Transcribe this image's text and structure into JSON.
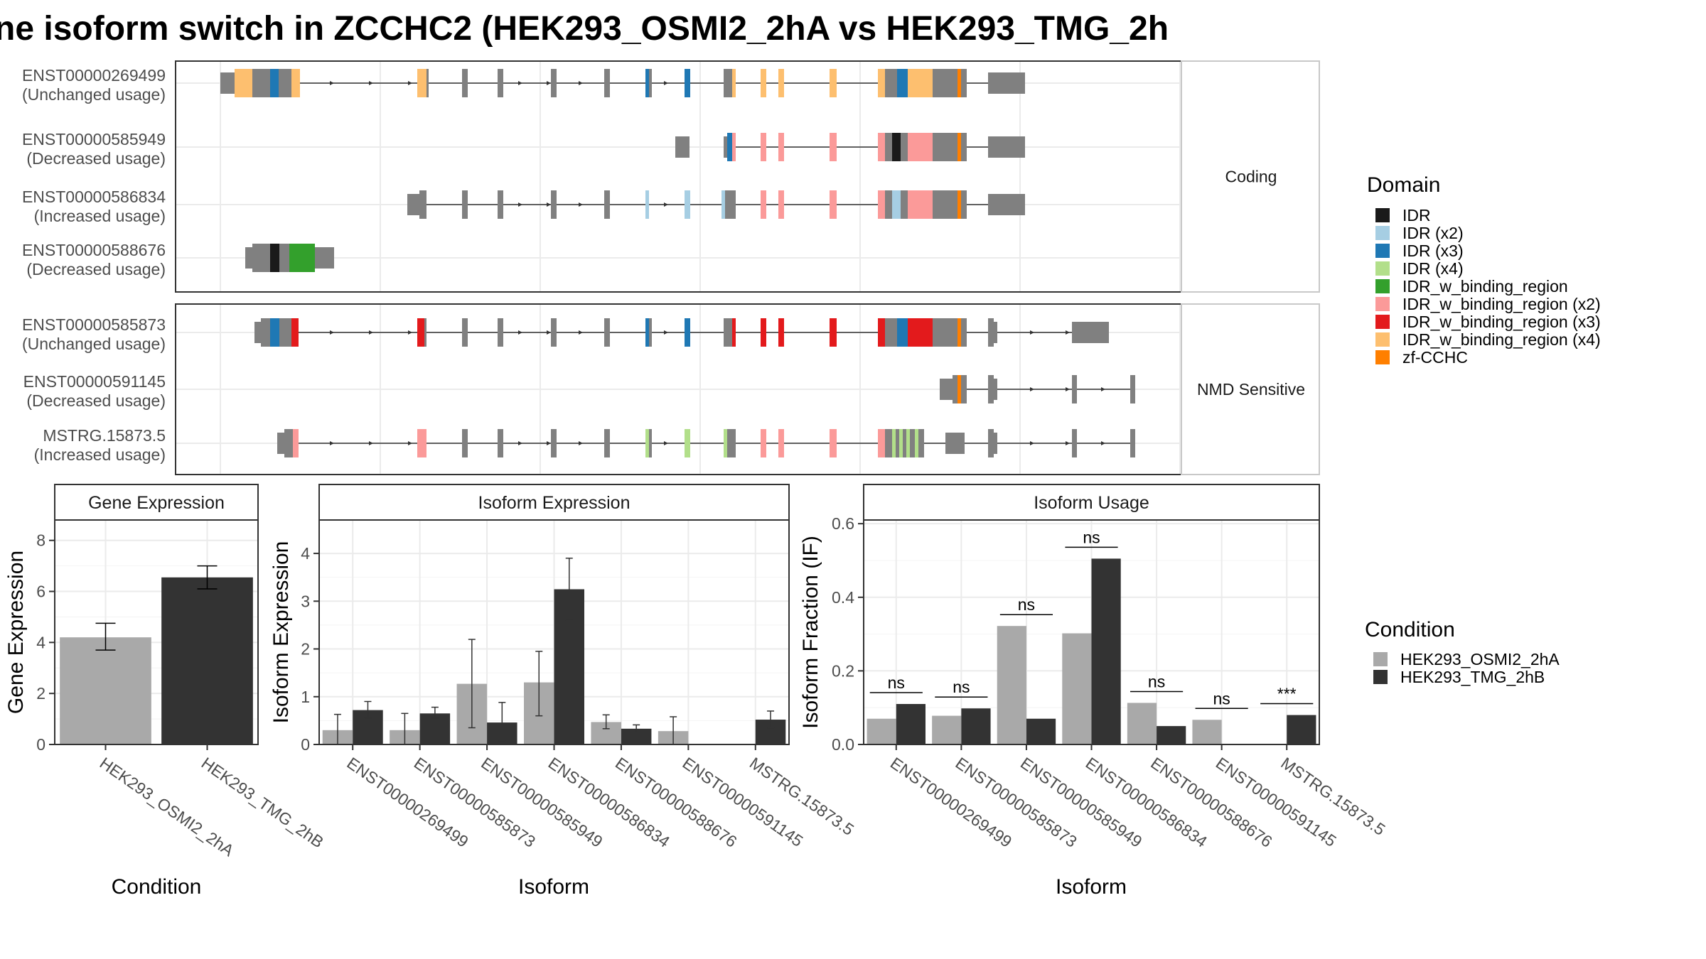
{
  "title": "ne isoform switch in ZCCHC2 (HEK293_OSMI2_2hA vs HEK293_TMG_2h",
  "legends": {
    "domain_title": "Domain",
    "domain_items": [
      {
        "label": "IDR",
        "color": "#1a1a1a"
      },
      {
        "label": "IDR (x2)",
        "color": "#a6cee3"
      },
      {
        "label": "IDR (x3)",
        "color": "#1f78b4"
      },
      {
        "label": "IDR (x4)",
        "color": "#b2df8a"
      },
      {
        "label": "IDR_w_binding_region",
        "color": "#33a02c"
      },
      {
        "label": "IDR_w_binding_region (x2)",
        "color": "#fb9a99"
      },
      {
        "label": "IDR_w_binding_region (x3)",
        "color": "#e31a1c"
      },
      {
        "label": "IDR_w_binding_region (x4)",
        "color": "#fdbf6f"
      },
      {
        "label": "zf-CCHC",
        "color": "#ff7f00"
      }
    ],
    "condition_title": "Condition",
    "condition_items": [
      {
        "label": "HEK293_OSMI2_2hA",
        "color": "#a9a9a9"
      },
      {
        "label": "HEK293_TMG_2hB",
        "color": "#333333"
      }
    ]
  },
  "structure": {
    "panels": [
      {
        "strip": "Coding",
        "transcripts": [
          {
            "id": "ENST00000269499",
            "usage": "(Unchanged usage)"
          },
          {
            "id": "ENST00000585949",
            "usage": "(Decreased usage)"
          },
          {
            "id": "ENST00000586834",
            "usage": "(Increased usage)"
          },
          {
            "id": "ENST00000588676",
            "usage": "(Decreased usage)"
          }
        ]
      },
      {
        "strip": "NMD Sensitive",
        "transcripts": [
          {
            "id": "ENST00000585873",
            "usage": "(Unchanged usage)"
          },
          {
            "id": "ENST00000591145",
            "usage": "(Decreased usage)"
          },
          {
            "id": "MSTRG.15873.5",
            "usage": "(Increased usage)"
          }
        ]
      }
    ]
  },
  "chart_data": [
    {
      "type": "bar",
      "title": "Gene Expression",
      "xlabel": "Condition",
      "ylabel": "Gene Expression",
      "ylim": [
        0,
        8.8
      ],
      "yticks": [
        0,
        2,
        4,
        6,
        8
      ],
      "categories": [
        "HEK293_OSMI2_2hA",
        "HEK293_TMG_2hB"
      ],
      "values": [
        4.2,
        6.55
      ],
      "error": [
        [
          3.7,
          4.75
        ],
        [
          6.1,
          7.0
        ]
      ]
    },
    {
      "type": "bar",
      "title": "Isoform Expression",
      "xlabel": "Isoform",
      "ylabel": "Isoform Expression",
      "ylim": [
        0,
        4.7
      ],
      "yticks": [
        0,
        1,
        2,
        3,
        4
      ],
      "categories": [
        "ENST00000269499",
        "ENST00000585873",
        "ENST00000585949",
        "ENST00000586834",
        "ENST00000588676",
        "ENST00000591145",
        "MSTRG.15873.5"
      ],
      "series": [
        {
          "name": "HEK293_OSMI2_2hA",
          "values": [
            0.3,
            0.3,
            1.27,
            1.3,
            0.47,
            0.28,
            0.0
          ],
          "error": [
            [
              0.0,
              0.63
            ],
            [
              0.0,
              0.65
            ],
            [
              0.35,
              2.2
            ],
            [
              0.6,
              1.95
            ],
            [
              0.33,
              0.62
            ],
            [
              0.0,
              0.58
            ],
            [
              0.0,
              0.0
            ]
          ]
        },
        {
          "name": "HEK293_TMG_2hB",
          "values": [
            0.72,
            0.65,
            0.46,
            3.25,
            0.33,
            0.0,
            0.52
          ],
          "error": [
            [
              0.55,
              0.9
            ],
            [
              0.55,
              0.78
            ],
            [
              0.08,
              0.88
            ],
            [
              2.6,
              3.9
            ],
            [
              0.25,
              0.41
            ],
            [
              0.0,
              0.0
            ],
            [
              0.35,
              0.7
            ]
          ]
        }
      ]
    },
    {
      "type": "bar",
      "title": "Isoform Usage",
      "xlabel": "Isoform",
      "ylabel": "Isoform Fraction (IF)",
      "ylim": [
        0,
        0.61
      ],
      "yticks": [
        0.0,
        0.2,
        0.4,
        0.6
      ],
      "categories": [
        "ENST00000269499",
        "ENST00000585873",
        "ENST00000585949",
        "ENST00000586834",
        "ENST00000588676",
        "ENST00000591145",
        "MSTRG.15873.5"
      ],
      "series": [
        {
          "name": "HEK293_OSMI2_2hA",
          "values": [
            0.07,
            0.078,
            0.322,
            0.302,
            0.113,
            0.067,
            0.0
          ]
        },
        {
          "name": "HEK293_TMG_2hB",
          "values": [
            0.11,
            0.098,
            0.07,
            0.505,
            0.05,
            0.0,
            0.08
          ]
        }
      ],
      "significance": [
        "ns",
        "ns",
        "ns",
        "ns",
        "ns",
        "ns",
        "***"
      ]
    }
  ]
}
